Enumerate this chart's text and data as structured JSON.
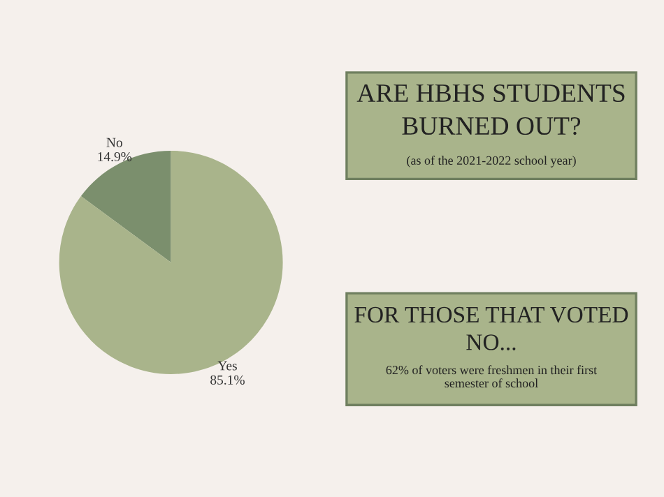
{
  "chart_data": {
    "type": "pie",
    "title": "ARE HBHS STUDENTS BURNED OUT?",
    "subtitle": "(as of the 2021-2022 school year)",
    "annotations": [
      "FOR THOSE THAT VOTED\nNO...",
      "62% of voters were freshmen in their first\nsemester of school"
    ],
    "categories": [
      "No",
      "Yes"
    ],
    "values": [
      14.9,
      85.1
    ],
    "value_labels": [
      "14.9%",
      "85.1%"
    ],
    "colors": [
      "#7b8f6d",
      "#a9b48b"
    ],
    "legend": false
  }
}
